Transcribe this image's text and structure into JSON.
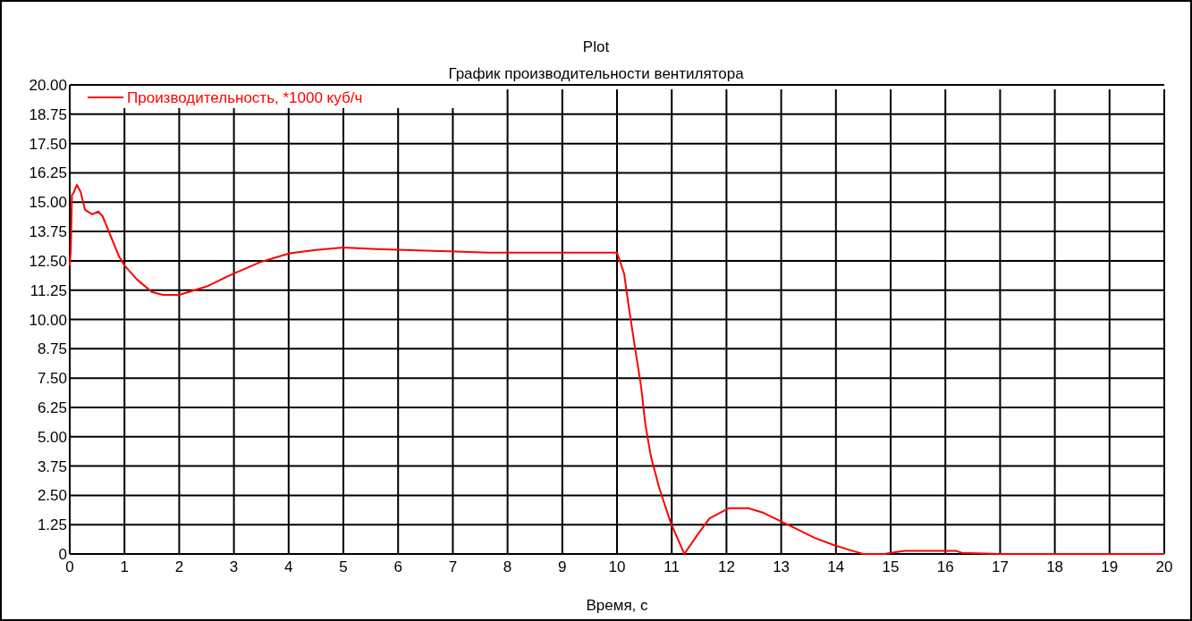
{
  "chart_data": {
    "type": "line",
    "title": "Plot",
    "subtitle": "График производительности вентилятора",
    "xlabel": "Время, с",
    "x": [
      0,
      0.02,
      0.04,
      0.07,
      0.13,
      0.2,
      0.28,
      0.41,
      0.52,
      0.6,
      0.74,
      0.9,
      1.0,
      1.23,
      1.5,
      1.7,
      2.0,
      2.27,
      2.53,
      2.97,
      3.5,
      3.95,
      4.05,
      4.5,
      5.0,
      5.6,
      6.5,
      7.67,
      10.0,
      10.13,
      10.23,
      10.34,
      10.44,
      10.52,
      10.62,
      10.77,
      10.98,
      11.23,
      11.48,
      11.69,
      12.04,
      12.4,
      12.68,
      13.11,
      13.61,
      13.96,
      14.31,
      14.5,
      14.89,
      15.0,
      15.25,
      16.2,
      16.3,
      17.0,
      20
    ],
    "series": [
      {
        "name": "Производительность, *1000 куб/ч",
        "color": "#ff0000",
        "values": [
          12.3,
          13.0,
          15.3,
          15.4,
          15.74,
          15.43,
          14.67,
          14.48,
          14.6,
          14.4,
          13.6,
          12.69,
          12.3,
          11.7,
          11.17,
          11.05,
          11.05,
          11.24,
          11.43,
          11.93,
          12.46,
          12.77,
          12.83,
          12.96,
          13.07,
          13.0,
          12.93,
          12.85,
          12.85,
          11.95,
          10.29,
          8.63,
          7.14,
          5.49,
          4.15,
          2.83,
          1.34,
          0,
          0.85,
          1.52,
          1.95,
          1.95,
          1.75,
          1.26,
          0.69,
          0.38,
          0.13,
          0,
          0,
          0.05,
          0.13,
          0.13,
          0.05,
          0,
          0
        ]
      }
    ],
    "xlim": [
      0,
      20
    ],
    "xticks": [
      0,
      1,
      2,
      3,
      4,
      5,
      6,
      7,
      8,
      9,
      10,
      11,
      12,
      13,
      14,
      15,
      16,
      17,
      18,
      19,
      20
    ],
    "ylim": [
      0,
      20
    ],
    "yticks": [
      0,
      {
        "value": 1.25,
        "label": "1.25"
      },
      {
        "value": 2.5,
        "label": "2.50"
      },
      {
        "value": 3.75,
        "label": "3.75"
      },
      {
        "value": 5,
        "label": "5.00"
      },
      {
        "value": 6.25,
        "label": "6.25"
      },
      {
        "value": 7.5,
        "label": "7.50"
      },
      {
        "value": 8.75,
        "label": "8.75"
      },
      {
        "value": 10,
        "label": "10.00"
      },
      {
        "value": 11.25,
        "label": "11.25"
      },
      {
        "value": 12.5,
        "label": "12.50"
      },
      {
        "value": 13.75,
        "label": "13.75"
      },
      {
        "value": 15,
        "label": "15.00"
      },
      {
        "value": 16.25,
        "label": "16.25"
      },
      {
        "value": 17.5,
        "label": "17.50"
      },
      {
        "value": 18.75,
        "label": "18.75"
      },
      {
        "value": 20,
        "label": "20.00"
      }
    ],
    "grid": true,
    "legend": "top left"
  }
}
